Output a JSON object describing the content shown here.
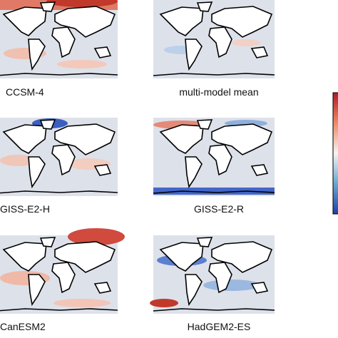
{
  "panels": [
    {
      "label": "CCSM-4"
    },
    {
      "label": "multi-model mean"
    },
    {
      "label": "GISS-E2-H"
    },
    {
      "label": "GISS-E2-R"
    },
    {
      "label": "CanESM2"
    },
    {
      "label": "HadGEM2-ES"
    }
  ]
}
